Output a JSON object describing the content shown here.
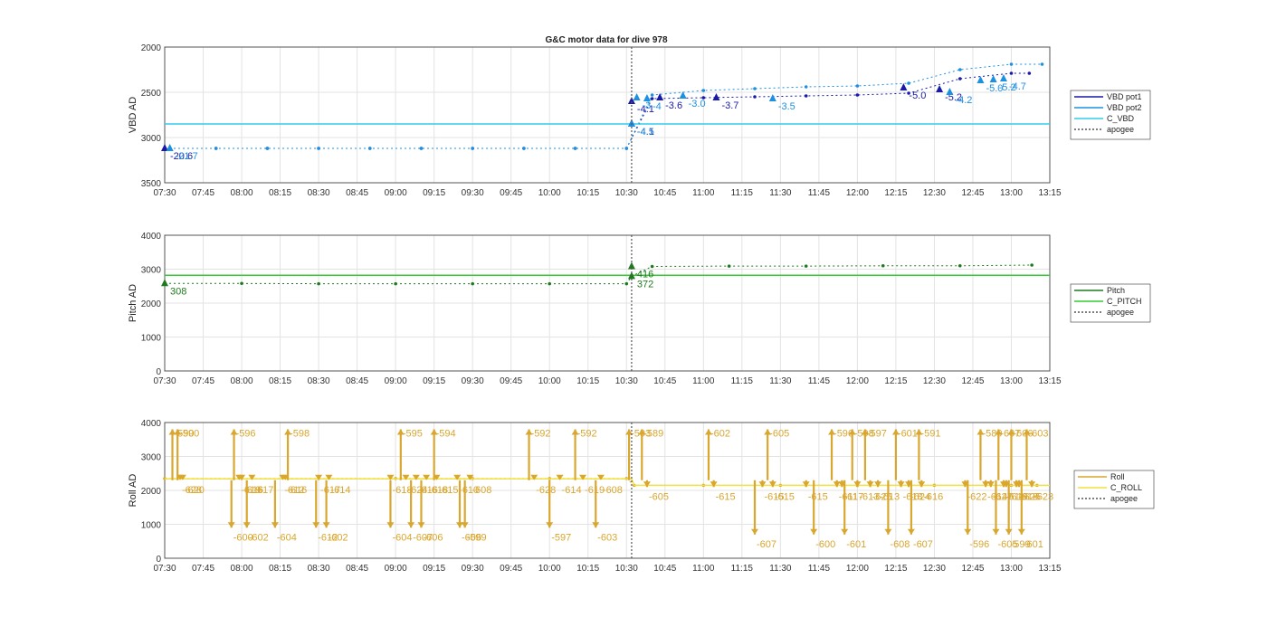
{
  "colors": {
    "vbd_pot1": "#1a1aa8",
    "vbd_pot2": "#1e90e0",
    "c_vbd": "#33ccee",
    "pitch": "#1e7a1e",
    "c_pitch": "#33cc33",
    "roll": "#d9a62e",
    "c_roll": "#f0e040",
    "apogee": "#555555",
    "grid": "#e3e3e3",
    "axis": "#333333"
  },
  "chart_data": [
    {
      "type": "line",
      "title": "G&C motor data for dive 978",
      "ylabel": "VBD AD",
      "ylim": [
        2000,
        3500
      ],
      "y_reversed": true,
      "yticks": [
        "2000",
        "2500",
        "3000",
        "3500"
      ],
      "xlim": [
        "07:30",
        "13:15"
      ],
      "xticks": [
        "07:30",
        "07:45",
        "08:00",
        "08:15",
        "08:30",
        "08:45",
        "09:00",
        "09:15",
        "09:30",
        "09:45",
        "10:00",
        "10:15",
        "10:30",
        "10:45",
        "11:00",
        "11:15",
        "11:30",
        "11:45",
        "12:00",
        "12:15",
        "12:30",
        "12:45",
        "13:00",
        "13:15"
      ],
      "legend": [
        "VBD pot1",
        "VBD pot2",
        "C_VBD",
        "apogee"
      ],
      "legend_position": "right",
      "grid": true,
      "apogee": "10:32",
      "series": [
        {
          "name": "VBD pot1",
          "x": [
            "07:30",
            "07:50",
            "08:10",
            "08:30",
            "08:50",
            "09:10",
            "09:30",
            "09:50",
            "10:10",
            "10:30",
            "10:40",
            "11:00",
            "11:20",
            "11:40",
            "12:00",
            "12:20",
            "12:40",
            "13:00",
            "13:07"
          ],
          "y": [
            3120,
            3120,
            3120,
            3120,
            3120,
            3120,
            3120,
            3120,
            3120,
            3120,
            2570,
            2560,
            2550,
            2540,
            2530,
            2510,
            2350,
            2290,
            2290
          ]
        },
        {
          "name": "VBD pot2",
          "x": [
            "07:30",
            "07:50",
            "08:10",
            "08:30",
            "08:50",
            "09:10",
            "09:30",
            "09:50",
            "10:10",
            "10:30",
            "10:40",
            "11:00",
            "11:20",
            "11:40",
            "12:00",
            "12:20",
            "12:40",
            "13:00",
            "13:12"
          ],
          "y": [
            3120,
            3120,
            3120,
            3120,
            3120,
            3120,
            3120,
            3120,
            3120,
            3120,
            2530,
            2480,
            2460,
            2440,
            2430,
            2400,
            2250,
            2190,
            2190
          ]
        },
        {
          "name": "C_VBD",
          "x": [
            "07:30",
            "13:15"
          ],
          "y": [
            2850,
            2850
          ]
        }
      ],
      "annotations": [
        {
          "x": "07:30",
          "y": 3120,
          "text": "-20.6",
          "series": "VBD pot1"
        },
        {
          "x": "07:32",
          "y": 3120,
          "text": "-21.7",
          "series": "VBD pot2"
        },
        {
          "x": "10:32",
          "y": 2850,
          "text": "-4.1",
          "series": "VBD pot1"
        },
        {
          "x": "10:32",
          "y": 2850,
          "text": "-4.5",
          "series": "VBD pot2"
        },
        {
          "x": "10:32",
          "y": 2600,
          "text": "-4.1",
          "series": "VBD pot1"
        },
        {
          "x": "10:34",
          "y": 2560,
          "text": "-3",
          "series": "VBD pot2"
        },
        {
          "x": "10:38",
          "y": 2570,
          "text": "-4",
          "series": "VBD pot2"
        },
        {
          "x": "10:43",
          "y": 2560,
          "text": "-3.6",
          "series": "VBD pot1"
        },
        {
          "x": "10:52",
          "y": 2540,
          "text": "-3.0",
          "series": "VBD pot2"
        },
        {
          "x": "11:05",
          "y": 2560,
          "text": "-3.7",
          "series": "VBD pot1"
        },
        {
          "x": "11:27",
          "y": 2570,
          "text": "-3.5",
          "series": "VBD pot2"
        },
        {
          "x": "12:18",
          "y": 2450,
          "text": "-5.0",
          "series": "VBD pot1"
        },
        {
          "x": "12:32",
          "y": 2470,
          "text": "-5.2",
          "series": "VBD pot1"
        },
        {
          "x": "12:36",
          "y": 2500,
          "text": "-4.2",
          "series": "VBD pot2"
        },
        {
          "x": "12:48",
          "y": 2370,
          "text": "-5.0",
          "series": "VBD pot2"
        },
        {
          "x": "12:53",
          "y": 2360,
          "text": "-5.2",
          "series": "VBD pot2"
        },
        {
          "x": "12:57",
          "y": 2350,
          "text": "-4.7",
          "series": "VBD pot2"
        }
      ]
    },
    {
      "type": "line",
      "ylabel": "Pitch AD",
      "ylim": [
        0,
        4000
      ],
      "yticks": [
        "0",
        "1000",
        "2000",
        "3000",
        "4000"
      ],
      "xlim": [
        "07:30",
        "13:15"
      ],
      "xticks": [
        "07:30",
        "07:45",
        "08:00",
        "08:15",
        "08:30",
        "08:45",
        "09:00",
        "09:15",
        "09:30",
        "09:45",
        "10:00",
        "10:15",
        "10:30",
        "10:45",
        "11:00",
        "11:15",
        "11:30",
        "11:45",
        "12:00",
        "12:15",
        "12:30",
        "12:45",
        "13:00",
        "13:15"
      ],
      "legend": [
        "Pitch",
        "C_PITCH",
        "apogee"
      ],
      "legend_position": "right",
      "grid": true,
      "apogee": "10:32",
      "series": [
        {
          "name": "Pitch",
          "x": [
            "07:30",
            "08:00",
            "08:30",
            "09:00",
            "09:30",
            "10:00",
            "10:30",
            "10:32",
            "10:40",
            "11:10",
            "11:40",
            "12:10",
            "12:40",
            "13:08"
          ],
          "y": [
            2580,
            2580,
            2570,
            2570,
            2570,
            2570,
            2570,
            2790,
            3080,
            3090,
            3090,
            3100,
            3100,
            3120
          ]
        },
        {
          "name": "C_PITCH",
          "x": [
            "07:30",
            "13:15"
          ],
          "y": [
            2820,
            2820
          ]
        }
      ],
      "annotations": [
        {
          "x": "07:30",
          "y": 2580,
          "text": "308"
        },
        {
          "x": "10:32",
          "y": 2790,
          "text": "372"
        },
        {
          "x": "10:32",
          "y": 3080,
          "text": "416"
        }
      ]
    },
    {
      "type": "line",
      "ylabel": "Roll AD",
      "ylim": [
        0,
        4000
      ],
      "yticks": [
        "0",
        "1000",
        "2000",
        "3000",
        "4000"
      ],
      "xlim": [
        "07:30",
        "13:15"
      ],
      "xticks": [
        "07:30",
        "07:45",
        "08:00",
        "08:15",
        "08:30",
        "08:45",
        "09:00",
        "09:15",
        "09:30",
        "09:45",
        "10:00",
        "10:15",
        "10:30",
        "10:45",
        "11:00",
        "11:15",
        "11:30",
        "11:45",
        "12:00",
        "12:15",
        "12:30",
        "12:45",
        "13:00",
        "13:15"
      ],
      "legend": [
        "Roll",
        "C_ROLL",
        "apogee"
      ],
      "legend_position": "right",
      "grid": true,
      "apogee": "10:32",
      "series": [
        {
          "name": "Roll",
          "x": [
            "07:30",
            "08:00",
            "08:30",
            "09:00",
            "09:30",
            "10:00",
            "10:30",
            "10:33",
            "11:00",
            "11:30",
            "12:00",
            "12:30",
            "13:00",
            "13:10"
          ],
          "y": [
            2350,
            2350,
            2350,
            2350,
            2350,
            2350,
            2350,
            2150,
            2150,
            2150,
            2150,
            2150,
            2150,
            2150
          ]
        },
        {
          "name": "C_ROLL",
          "x": [
            "07:30",
            "10:32",
            "10:33",
            "13:15"
          ],
          "y": [
            2340,
            2340,
            2150,
            2150
          ]
        }
      ],
      "roll_events": [
        {
          "x": "07:33",
          "y_end": 3800,
          "text": "-590"
        },
        {
          "x": "07:35",
          "y_end": 3800,
          "text": "-590"
        },
        {
          "x": "07:36",
          "y_end": 2300,
          "text": "-628"
        },
        {
          "x": "07:37",
          "y_end": 2300,
          "text": "-620"
        },
        {
          "x": "07:56",
          "y_end": 900,
          "text": "-600"
        },
        {
          "x": "07:57",
          "y_end": 3800,
          "text": "-596"
        },
        {
          "x": "07:59",
          "y_end": 2300,
          "text": "-619"
        },
        {
          "x": "08:00",
          "y_end": 2300,
          "text": "-616"
        },
        {
          "x": "08:04",
          "y_end": 2300,
          "text": "-617"
        },
        {
          "x": "08:02",
          "y_end": 900,
          "text": "-602"
        },
        {
          "x": "08:13",
          "y_end": 900,
          "text": "-604"
        },
        {
          "x": "08:16",
          "y_end": 2300,
          "text": "-612"
        },
        {
          "x": "08:17",
          "y_end": 2300,
          "text": "-616"
        },
        {
          "x": "08:18",
          "y_end": 3800,
          "text": "-598"
        },
        {
          "x": "08:29",
          "y_end": 900,
          "text": "-612"
        },
        {
          "x": "08:30",
          "y_end": 2300,
          "text": "-617"
        },
        {
          "x": "08:33",
          "y_end": 900,
          "text": "-602"
        },
        {
          "x": "08:34",
          "y_end": 2300,
          "text": "-614"
        },
        {
          "x": "08:58",
          "y_end": 2300,
          "text": "-618"
        },
        {
          "x": "08:58",
          "y_end": 900,
          "text": "-604"
        },
        {
          "x": "09:02",
          "y_end": 3800,
          "text": "-595"
        },
        {
          "x": "09:04",
          "y_end": 2300,
          "text": "-624"
        },
        {
          "x": "09:06",
          "y_end": 900,
          "text": "-607"
        },
        {
          "x": "09:08",
          "y_end": 2300,
          "text": "-616"
        },
        {
          "x": "09:10",
          "y_end": 900,
          "text": "-606"
        },
        {
          "x": "09:12",
          "y_end": 2300,
          "text": "-618"
        },
        {
          "x": "09:15",
          "y_end": 3800,
          "text": "-594"
        },
        {
          "x": "09:16",
          "y_end": 2300,
          "text": "-615"
        },
        {
          "x": "09:24",
          "y_end": 2300,
          "text": "-610"
        },
        {
          "x": "09:25",
          "y_end": 900,
          "text": "-606"
        },
        {
          "x": "09:27",
          "y_end": 900,
          "text": "-599"
        },
        {
          "x": "09:29",
          "y_end": 2300,
          "text": "-608"
        },
        {
          "x": "09:52",
          "y_end": 3800,
          "text": "-592"
        },
        {
          "x": "09:54",
          "y_end": 2300,
          "text": "-628"
        },
        {
          "x": "10:00",
          "y_end": 900,
          "text": "-597"
        },
        {
          "x": "10:04",
          "y_end": 2300,
          "text": "-614"
        },
        {
          "x": "10:10",
          "y_end": 3800,
          "text": "-592"
        },
        {
          "x": "10:13",
          "y_end": 2300,
          "text": "-619"
        },
        {
          "x": "10:18",
          "y_end": 900,
          "text": "-603"
        },
        {
          "x": "10:20",
          "y_end": 2300,
          "text": "-608"
        },
        {
          "x": "10:31",
          "y_end": 3800,
          "text": "-593"
        },
        {
          "x": "10:36",
          "y_end": 3800,
          "text": "-589"
        },
        {
          "x": "10:38",
          "y_end": 2100,
          "text": "-605"
        },
        {
          "x": "11:02",
          "y_end": 3800,
          "text": "-602"
        },
        {
          "x": "11:04",
          "y_end": 2100,
          "text": "-615"
        },
        {
          "x": "11:20",
          "y_end": 700,
          "text": "-607"
        },
        {
          "x": "11:23",
          "y_end": 2100,
          "text": "-615"
        },
        {
          "x": "11:25",
          "y_end": 3800,
          "text": "-605"
        },
        {
          "x": "11:27",
          "y_end": 2100,
          "text": "-615"
        },
        {
          "x": "11:40",
          "y_end": 2100,
          "text": "-615"
        },
        {
          "x": "11:43",
          "y_end": 700,
          "text": "-600"
        },
        {
          "x": "11:50",
          "y_end": 3800,
          "text": "-596"
        },
        {
          "x": "11:52",
          "y_end": 2100,
          "text": "-611"
        },
        {
          "x": "11:54",
          "y_end": 2100,
          "text": "-617"
        },
        {
          "x": "11:55",
          "y_end": 700,
          "text": "-601"
        },
        {
          "x": "11:58",
          "y_end": 3800,
          "text": "-598"
        },
        {
          "x": "12:00",
          "y_end": 2100,
          "text": "-613"
        },
        {
          "x": "12:03",
          "y_end": 3800,
          "text": "-597"
        },
        {
          "x": "12:05",
          "y_end": 2100,
          "text": "-625"
        },
        {
          "x": "12:08",
          "y_end": 2100,
          "text": "-613"
        },
        {
          "x": "12:12",
          "y_end": 700,
          "text": "-608"
        },
        {
          "x": "12:15",
          "y_end": 3800,
          "text": "-601"
        },
        {
          "x": "12:17",
          "y_end": 2100,
          "text": "-618"
        },
        {
          "x": "12:20",
          "y_end": 2100,
          "text": "-624"
        },
        {
          "x": "12:21",
          "y_end": 700,
          "text": "-607"
        },
        {
          "x": "12:24",
          "y_end": 3800,
          "text": "-591"
        },
        {
          "x": "12:25",
          "y_end": 2100,
          "text": "-616"
        },
        {
          "x": "12:42",
          "y_end": 2100,
          "text": "-622"
        },
        {
          "x": "12:43",
          "y_end": 700,
          "text": "-596"
        },
        {
          "x": "12:48",
          "y_end": 3800,
          "text": "-589"
        },
        {
          "x": "12:50",
          "y_end": 2100,
          "text": "-614"
        },
        {
          "x": "12:52",
          "y_end": 2100,
          "text": "-627"
        },
        {
          "x": "12:54",
          "y_end": 700,
          "text": "-605"
        },
        {
          "x": "12:55",
          "y_end": 3800,
          "text": "-607"
        },
        {
          "x": "12:57",
          "y_end": 2100,
          "text": "-611"
        },
        {
          "x": "12:58",
          "y_end": 2100,
          "text": "-619"
        },
        {
          "x": "12:59",
          "y_end": 700,
          "text": "-599"
        },
        {
          "x": "13:00",
          "y_end": 3800,
          "text": "-606"
        },
        {
          "x": "13:02",
          "y_end": 2100,
          "text": "-618"
        },
        {
          "x": "13:03",
          "y_end": 2100,
          "text": "-625"
        },
        {
          "x": "13:04",
          "y_end": 700,
          "text": "-601"
        },
        {
          "x": "13:06",
          "y_end": 3800,
          "text": "-603"
        },
        {
          "x": "13:08",
          "y_end": 2100,
          "text": "-623"
        }
      ]
    }
  ]
}
